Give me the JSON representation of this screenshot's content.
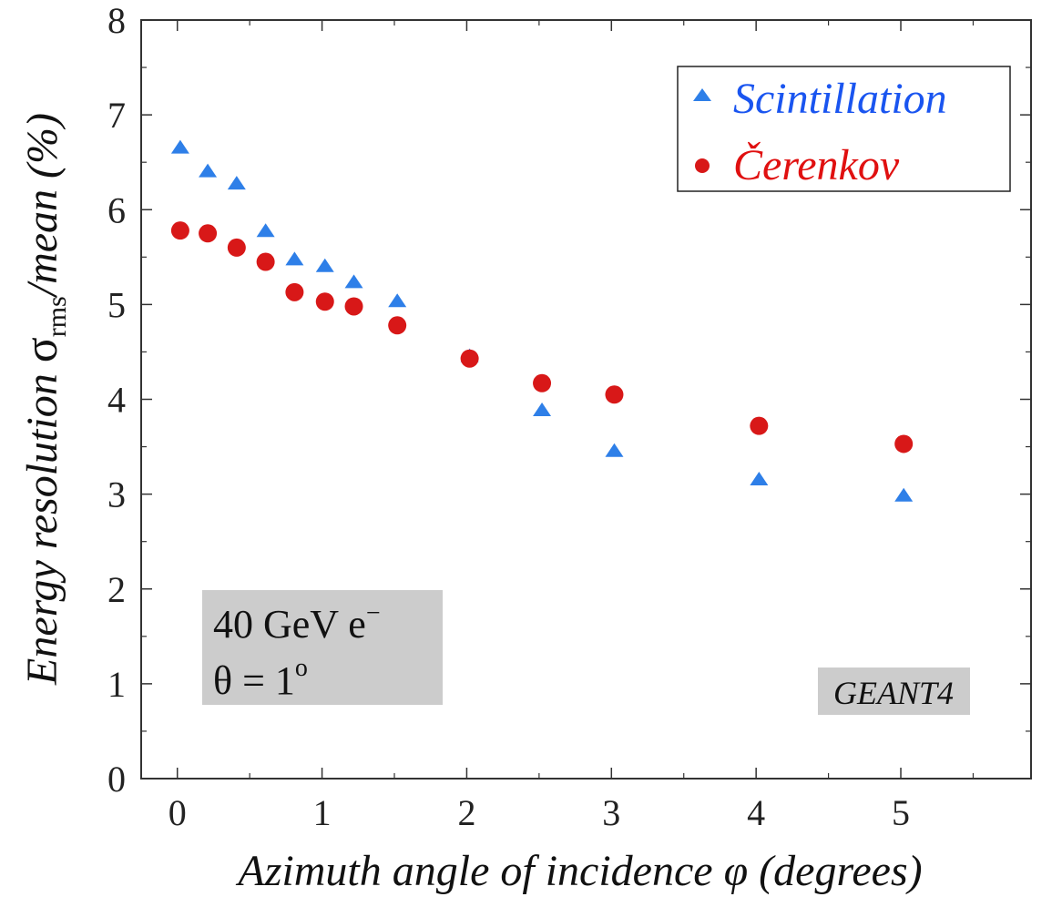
{
  "chart_data": {
    "type": "scatter",
    "title": "",
    "xlabel": "Azimuth angle of incidence φ (degrees)",
    "ylabel_parts": {
      "pre": "Energy resolution ",
      "sigma": "σ",
      "sub": "rms",
      "post": "/mean (%)"
    },
    "xlim": [
      -0.25,
      5.9
    ],
    "ylim": [
      0,
      8
    ],
    "xticks": [
      0,
      1,
      2,
      3,
      4,
      5
    ],
    "yticks": [
      0,
      1,
      2,
      3,
      4,
      5,
      6,
      7,
      8
    ],
    "grid": false,
    "legend_position": "top-right",
    "series": [
      {
        "name": "Scintillation",
        "marker": "triangle",
        "color": "#2e7fe8",
        "text_color": "#1a55f0",
        "x": [
          0.02,
          0.21,
          0.41,
          0.61,
          0.81,
          1.02,
          1.22,
          1.52,
          2.02,
          2.52,
          3.02,
          4.02,
          5.02
        ],
        "y": [
          6.65,
          6.4,
          6.27,
          5.77,
          5.47,
          5.4,
          5.23,
          5.03,
          4.45,
          3.88,
          3.45,
          3.15,
          2.98
        ]
      },
      {
        "name": "Čerenkov",
        "marker": "circle",
        "color": "#d81818",
        "text_color": "#e01010",
        "x": [
          0.02,
          0.21,
          0.41,
          0.61,
          0.81,
          1.02,
          1.22,
          1.52,
          2.02,
          2.52,
          3.02,
          4.02,
          5.02
        ],
        "y": [
          5.78,
          5.75,
          5.6,
          5.45,
          5.13,
          5.03,
          4.98,
          4.78,
          4.43,
          4.17,
          4.05,
          3.72,
          3.53
        ]
      }
    ],
    "annotations": {
      "beam_line1": "40 GeV e",
      "beam_line1_sup": "−",
      "beam_line2": "θ = 1",
      "beam_line2_sup": "o",
      "simulation": "GEANT4"
    },
    "colors": {
      "annotation_box": "#cccccc",
      "axis": "#333333"
    }
  }
}
